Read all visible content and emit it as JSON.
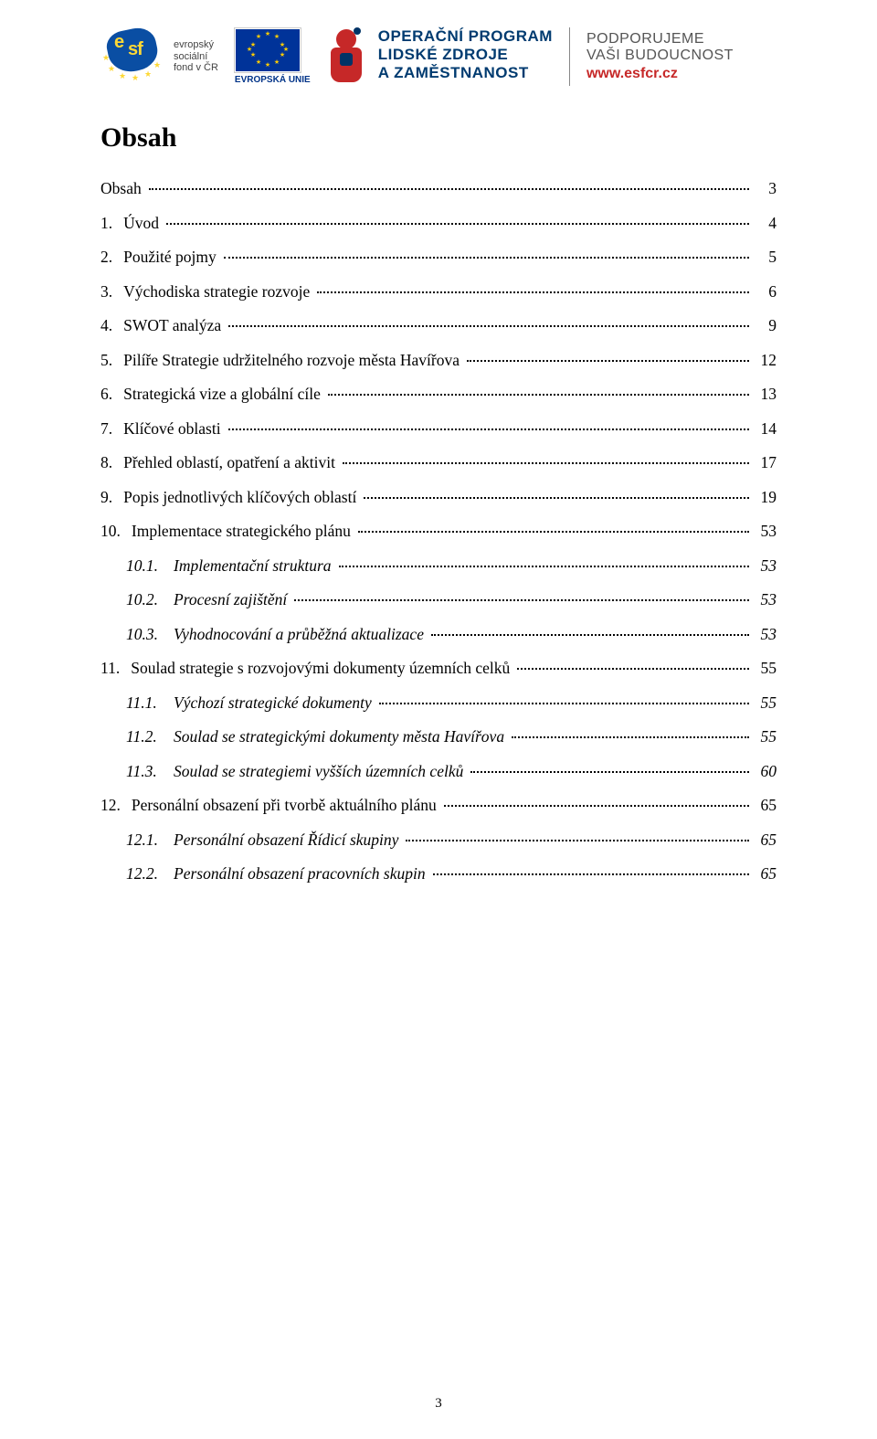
{
  "header": {
    "esf": {
      "caption_line1": "evropský",
      "caption_line2": "sociální",
      "caption_line3": "fond v ČR"
    },
    "eu": {
      "caption": "EVROPSKÁ UNIE"
    },
    "op": {
      "line1": "OPERAČNÍ PROGRAM",
      "line2": "LIDSKÉ ZDROJE",
      "line3": "A ZAMĚSTNANOST"
    },
    "support": {
      "line1": "PODPORUJEME",
      "line2": "VAŠI BUDOUCNOST",
      "url": "www.esfcr.cz"
    },
    "colors": {
      "esf_blue": "#0a4ea3",
      "esf_yellow": "#fdd835",
      "eu_blue": "#003399",
      "eu_gold": "#ffcc00",
      "op_red": "#c62828",
      "op_navy": "#003b70",
      "support_grey": "#555555"
    }
  },
  "title": "Obsah",
  "entries": [
    {
      "level": 0,
      "num": "",
      "text": "Obsah",
      "page": "3"
    },
    {
      "level": 0,
      "num": "1.",
      "text": "Úvod",
      "page": "4"
    },
    {
      "level": 0,
      "num": "2.",
      "text": "Použité pojmy",
      "page": "5"
    },
    {
      "level": 0,
      "num": "3.",
      "text": "Východiska strategie rozvoje",
      "page": "6"
    },
    {
      "level": 0,
      "num": "4.",
      "text": "SWOT analýza",
      "page": "9"
    },
    {
      "level": 0,
      "num": "5.",
      "text": "Pilíře Strategie udržitelného rozvoje města Havířova",
      "page": "12"
    },
    {
      "level": 0,
      "num": "6.",
      "text": "Strategická vize a globální cíle",
      "page": "13"
    },
    {
      "level": 0,
      "num": "7.",
      "text": "Klíčové oblasti",
      "page": "14"
    },
    {
      "level": 0,
      "num": "8.",
      "text": "Přehled oblastí, opatření a aktivit",
      "page": "17"
    },
    {
      "level": 0,
      "num": "9.",
      "text": "Popis jednotlivých klíčových oblastí",
      "page": "19"
    },
    {
      "level": 0,
      "num": "10.",
      "text": "Implementace strategického plánu",
      "page": "53"
    },
    {
      "level": 1,
      "num": "10.1.",
      "text": "Implementační struktura",
      "page": "53"
    },
    {
      "level": 1,
      "num": "10.2.",
      "text": "Procesní zajištění",
      "page": "53"
    },
    {
      "level": 1,
      "num": "10.3.",
      "text": "Vyhodnocování a průběžná aktualizace",
      "page": "53"
    },
    {
      "level": 0,
      "num": "11.",
      "text": "Soulad strategie s rozvojovými dokumenty územních celků",
      "page": "55"
    },
    {
      "level": 1,
      "num": "11.1.",
      "text": "Výchozí strategické dokumenty",
      "page": "55"
    },
    {
      "level": 1,
      "num": "11.2.",
      "text": "Soulad se strategickými dokumenty města Havířova",
      "page": "55"
    },
    {
      "level": 1,
      "num": "11.3.",
      "text": "Soulad se strategiemi vyšších územních celků",
      "page": "60"
    },
    {
      "level": 0,
      "num": "12.",
      "text": "Personální obsazení při tvorbě aktuálního plánu",
      "page": "65"
    },
    {
      "level": 1,
      "num": "12.1.",
      "text": "Personální obsazení Řídicí skupiny",
      "page": "65"
    },
    {
      "level": 1,
      "num": "12.2.",
      "text": "Personální obsazení pracovních skupin",
      "page": "65"
    }
  ],
  "page_number": "3"
}
